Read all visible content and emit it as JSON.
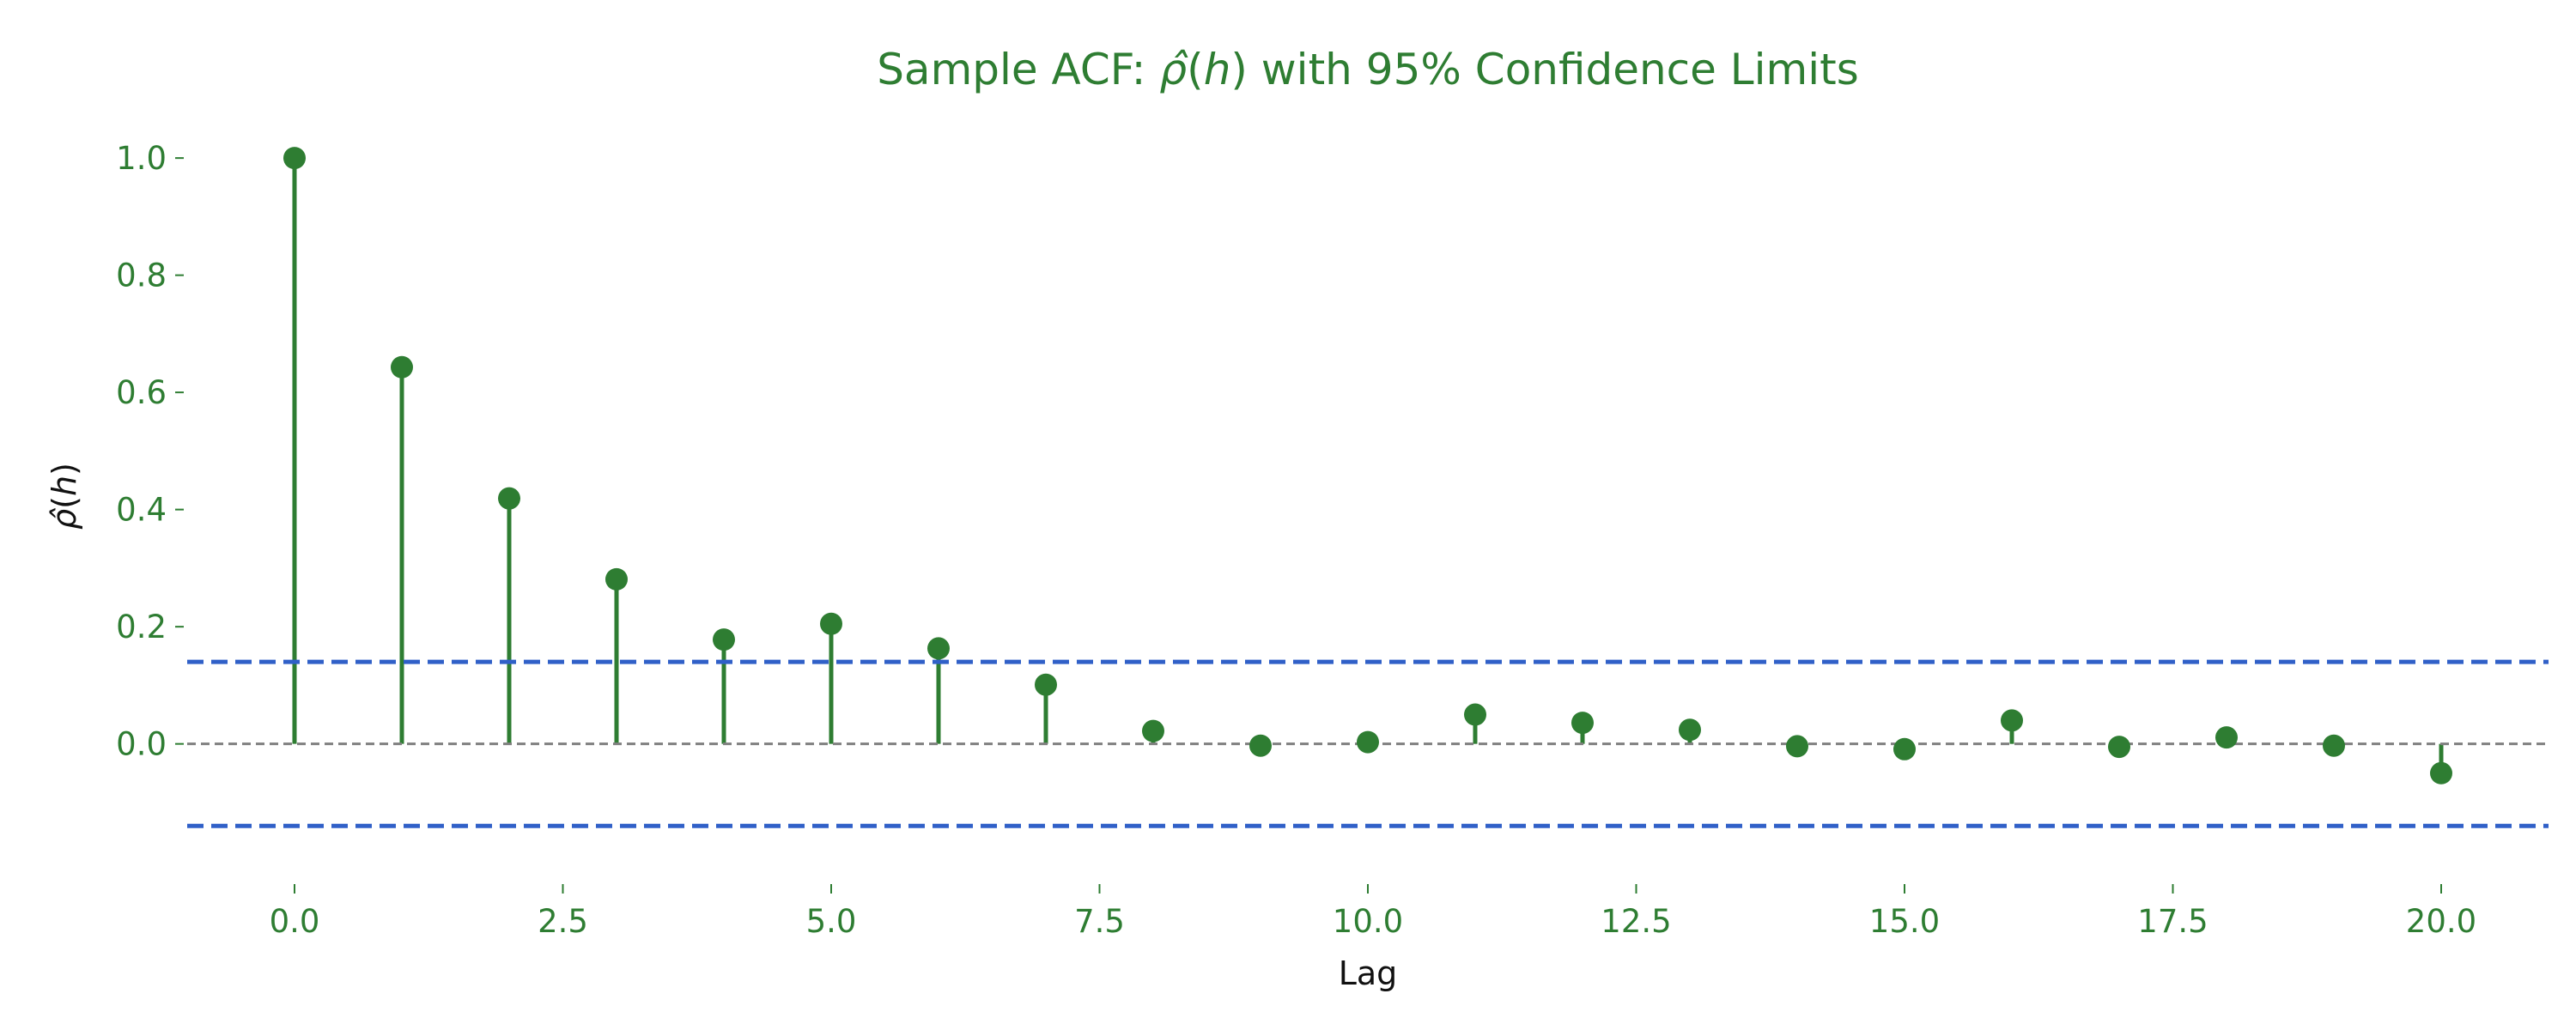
{
  "chart_data": {
    "type": "stem",
    "title": {
      "prefix": "Sample ACF: ",
      "rho_symbol": "ρ̂",
      "open_paren": "(",
      "h_symbol": "h",
      "suffix": ") with 95% Confidence Limits"
    },
    "xlabel": "Lag",
    "ylabel": {
      "rho_symbol": "ρ̂",
      "open_paren": "(",
      "h_symbol": "h",
      "close_paren": ")"
    },
    "x": [
      0,
      1,
      2,
      3,
      4,
      5,
      6,
      7,
      8,
      9,
      10,
      11,
      12,
      13,
      14,
      15,
      16,
      17,
      18,
      19,
      20
    ],
    "values": [
      1.0,
      0.643,
      0.419,
      0.281,
      0.178,
      0.205,
      0.163,
      0.101,
      0.022,
      -0.003,
      0.003,
      0.05,
      0.036,
      0.024,
      -0.004,
      -0.009,
      0.04,
      -0.005,
      0.011,
      -0.003,
      -0.05
    ],
    "confidence_limits": {
      "upper": 0.14,
      "lower": -0.14,
      "level": "95%"
    },
    "zero_line": 0,
    "xlim": [
      -1,
      21
    ],
    "ylim": [
      -0.21,
      1.05
    ],
    "x_ticks": [
      0,
      2.5,
      5,
      7.5,
      10,
      12.5,
      15,
      17.5,
      20
    ],
    "x_tick_labels": [
      "0.0",
      "2.5",
      "5.0",
      "7.5",
      "10.0",
      "12.5",
      "15.0",
      "17.5",
      "20.0"
    ],
    "y_ticks": [
      0,
      0.2,
      0.4,
      0.6,
      0.8,
      1.0
    ],
    "y_tick_labels": [
      "0.0",
      "0.2",
      "0.4",
      "0.6",
      "0.8",
      "1.0"
    ],
    "grid": false,
    "colors": {
      "stem": "#2e7d32",
      "text": "#2e7d32",
      "confidence": "#3060c8",
      "zero_line": "#808080",
      "axis_label": "#111111"
    }
  }
}
